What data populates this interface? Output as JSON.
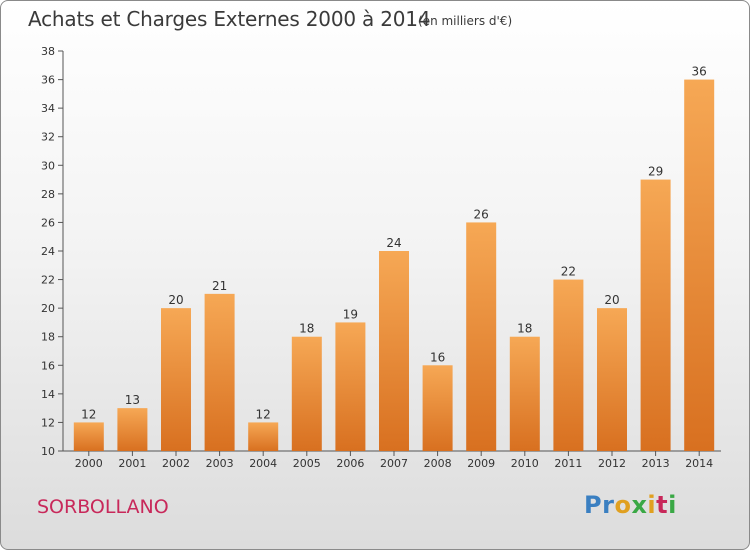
{
  "header": {
    "title": "Achats et Charges Externes 2000 à 2014",
    "subtitle": "(en milliers d'€)"
  },
  "footer": {
    "place": "SORBOLLANO",
    "logo_letters": [
      "P",
      "r",
      "o",
      "x",
      "i",
      "t",
      "i"
    ]
  },
  "colors": {
    "bar_light": "#f6a855",
    "bar_dark": "#d87020",
    "logo": [
      "#3a7fc1",
      "#3a7fc1",
      "#e0a020",
      "#3aa845",
      "#e0a020",
      "#c8285a",
      "#3aa845"
    ]
  },
  "chart_data": {
    "type": "bar",
    "categories": [
      "2000",
      "2001",
      "2002",
      "2003",
      "2004",
      "2005",
      "2006",
      "2007",
      "2008",
      "2009",
      "2010",
      "2011",
      "2012",
      "2013",
      "2014"
    ],
    "values": [
      12,
      13,
      20,
      21,
      12,
      18,
      19,
      24,
      16,
      26,
      18,
      22,
      20,
      29,
      36
    ],
    "ylim": [
      10,
      38
    ],
    "yticks": [
      10,
      12,
      14,
      16,
      18,
      20,
      22,
      24,
      26,
      28,
      30,
      32,
      34,
      36,
      38
    ],
    "grid": false,
    "legend": "none"
  }
}
